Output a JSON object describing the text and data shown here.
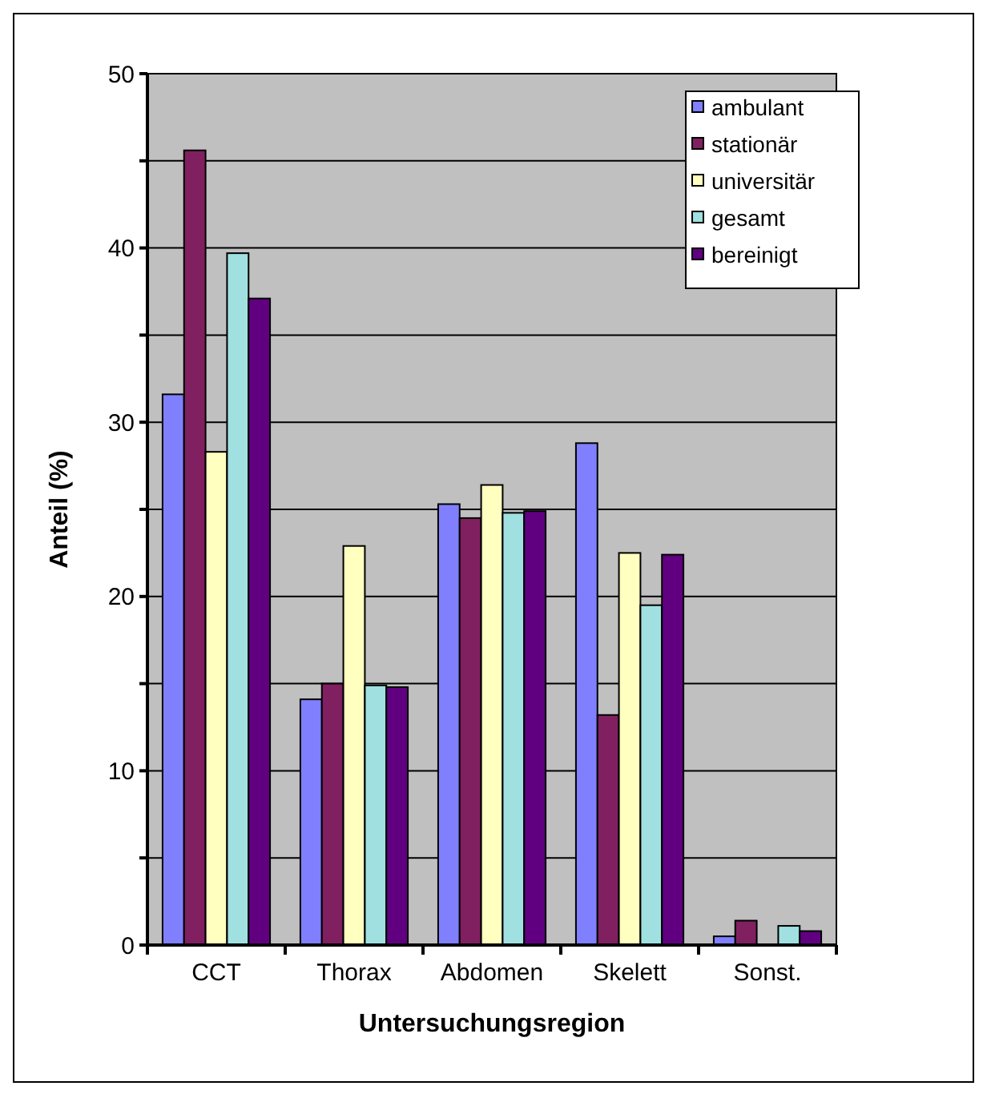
{
  "chart_data": {
    "type": "bar",
    "xlabel": "Untersuchungsregion",
    "ylabel": "Anteil (%)",
    "categories": [
      "CCT",
      "Thorax",
      "Abdomen",
      "Skelett",
      "Sonst."
    ],
    "series": [
      {
        "name": "ambulant",
        "color": "#8080ff",
        "values": [
          31.6,
          14.1,
          25.3,
          28.8,
          0.5
        ]
      },
      {
        "name": "stationär",
        "color": "#802060",
        "values": [
          45.6,
          15.0,
          24.5,
          13.2,
          1.4
        ]
      },
      {
        "name": "universitär",
        "color": "#ffffc0",
        "values": [
          28.3,
          22.9,
          26.4,
          22.5,
          null
        ]
      },
      {
        "name": "gesamt",
        "color": "#a0e0e0",
        "values": [
          39.7,
          14.9,
          24.8,
          19.5,
          1.1
        ]
      },
      {
        "name": "bereinigt",
        "color": "#600080",
        "values": [
          37.1,
          14.8,
          24.9,
          22.4,
          0.8
        ]
      }
    ],
    "ylim": [
      0,
      50
    ],
    "yticks": [
      0,
      {
        "value": 5,
        "label": null
      },
      10,
      {
        "value": 15,
        "label": null
      },
      20,
      {
        "value": 25,
        "label": null
      },
      30,
      {
        "value": 35,
        "label": null
      },
      40,
      {
        "value": 45,
        "label": null
      },
      50
    ],
    "grid": "y",
    "legend": "top right"
  }
}
